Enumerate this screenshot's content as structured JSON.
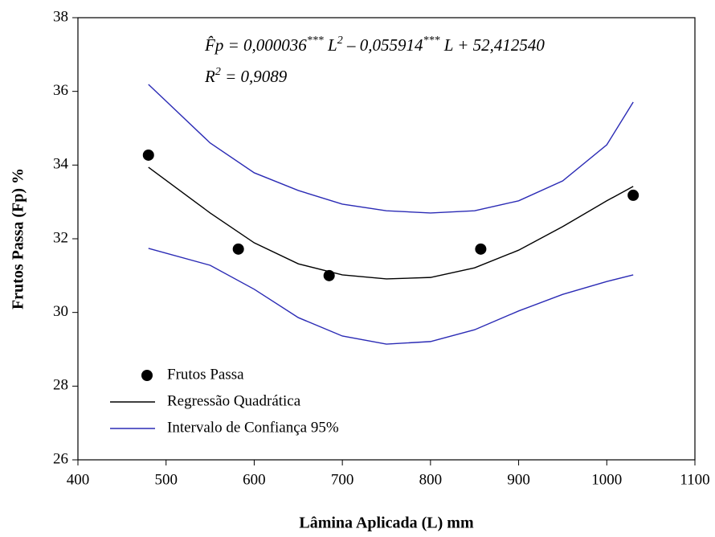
{
  "chart_data": {
    "type": "scatter",
    "x_label": "Lâmina Aplicada (L) mm",
    "y_label": "Frutos Passa (Fp) %",
    "xlim": [
      400,
      1100
    ],
    "xticks": [
      400,
      500,
      600,
      700,
      800,
      900,
      1000,
      1100
    ],
    "ylim": [
      26,
      38
    ],
    "yticks": [
      26,
      28,
      30,
      32,
      34,
      36,
      38
    ],
    "grid": false,
    "legend": "lower-left",
    "equation": [
      {
        "text": "F̂p = 0,000036",
        "sup": false
      },
      {
        "text": "***",
        "sup": true
      },
      {
        "text": " L",
        "sup": false
      },
      {
        "text": "2",
        "sup": true
      },
      {
        "text": " – 0,055914",
        "sup": false
      },
      {
        "text": "***",
        "sup": true
      },
      {
        "text": " L + 52,412540",
        "sup": false
      }
    ],
    "r2": [
      {
        "text": "R",
        "sup": false
      },
      {
        "text": "2",
        "sup": true
      },
      {
        "text": " = 0,9089",
        "sup": false
      }
    ],
    "series": [
      {
        "name": "Frutos Passa",
        "type": "scatter",
        "color": "#000000",
        "x": [
          480,
          582,
          685,
          857,
          1030
        ],
        "values": [
          34.27,
          31.72,
          31.0,
          31.72,
          33.18
        ]
      },
      {
        "name": "Regressão Quadrática",
        "type": "line",
        "color": "#000000",
        "x": [
          480,
          550,
          600,
          650,
          700,
          750,
          800,
          850,
          900,
          950,
          1000,
          1030
        ],
        "values": [
          33.94,
          32.7,
          31.89,
          31.32,
          31.02,
          30.91,
          30.95,
          31.21,
          31.69,
          32.33,
          33.03,
          33.42
        ]
      },
      {
        "name": "Intervalo de Confiança 95%",
        "type": "band-lines",
        "color": "#2b2bb5",
        "x": [
          480,
          550,
          600,
          650,
          700,
          750,
          800,
          850,
          900,
          950,
          1000,
          1030
        ],
        "upper": [
          36.19,
          34.6,
          33.79,
          33.31,
          32.94,
          32.76,
          32.7,
          32.76,
          33.03,
          33.57,
          34.55,
          35.71
        ],
        "lower": [
          31.74,
          31.28,
          30.63,
          29.86,
          29.36,
          29.14,
          29.21,
          29.53,
          30.04,
          30.49,
          30.84,
          31.02
        ]
      }
    ]
  }
}
